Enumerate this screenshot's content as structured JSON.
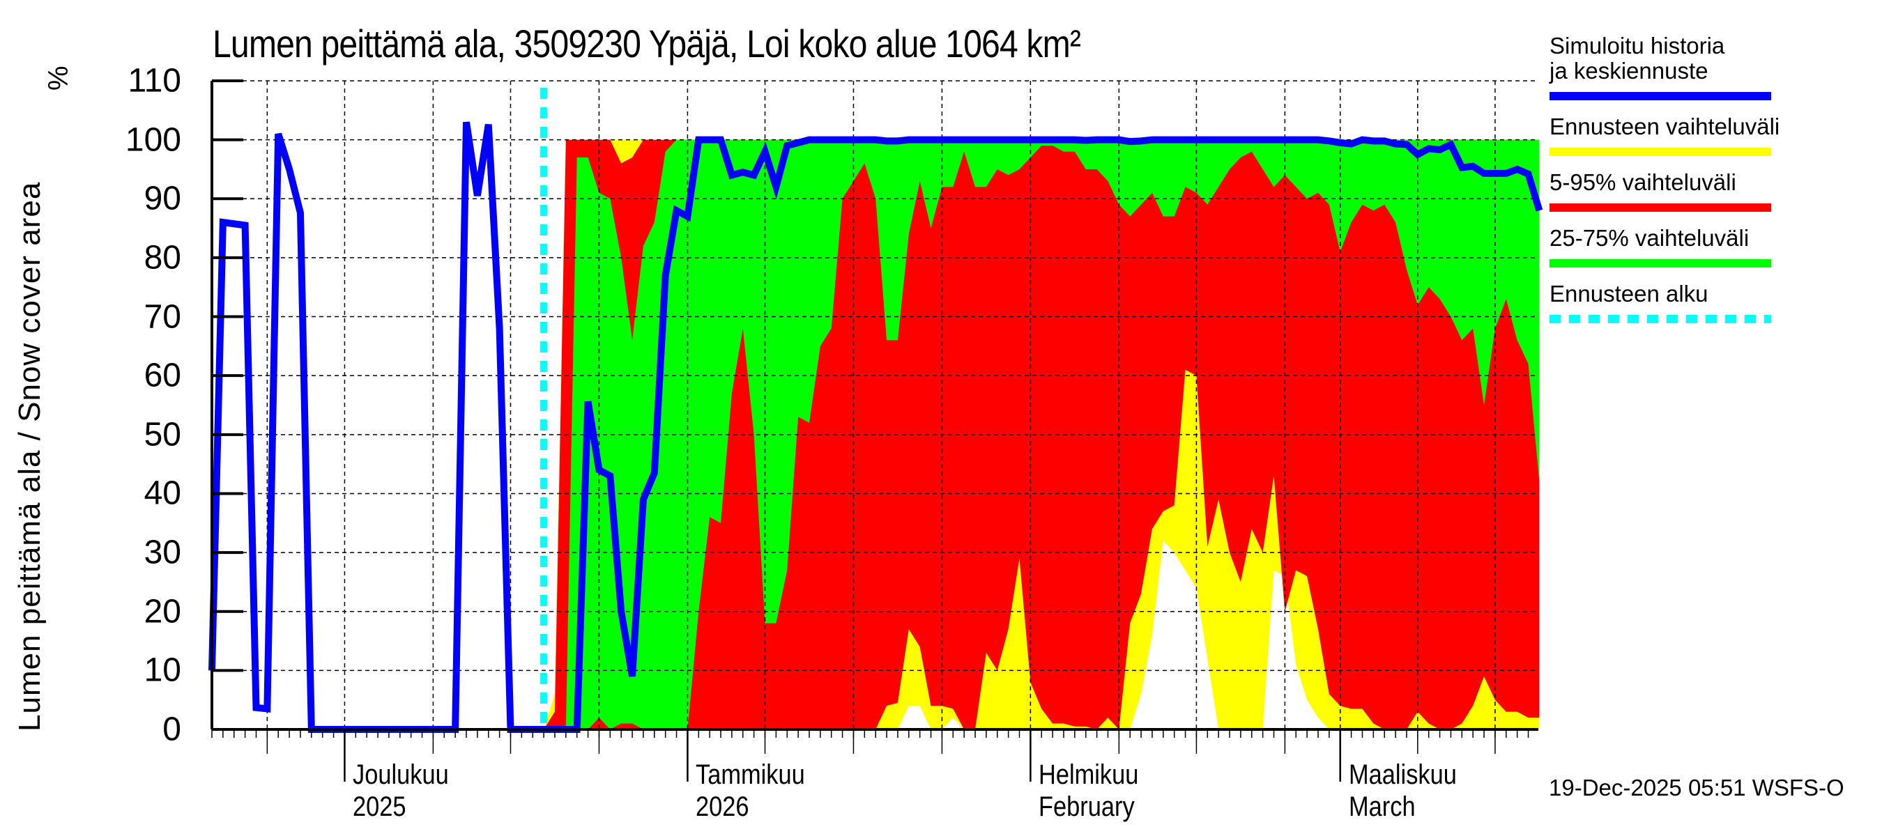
{
  "chart_data": {
    "type": "area",
    "title": "Lumen peittämä ala, 3509230 Ypäjä, Loi koko alue 1064 km²",
    "ylabel": "Lumen peittämä ala / Snow cover area",
    "yunit": "%",
    "xlabel": "",
    "ylim": [
      0,
      110
    ],
    "yticks": [
      0,
      10,
      20,
      30,
      40,
      50,
      60,
      70,
      80,
      90,
      100,
      110
    ],
    "grid": true,
    "legend_position": "right",
    "x_start_date": "2025-11-19",
    "x_end_date": "2026-03-19",
    "forecast_start_date": "2025-12-19",
    "month_labels": [
      {
        "line1": "Joulukuu",
        "line2": "2025",
        "date": "2025-12-01",
        "day": 12
      },
      {
        "line1": "Tammikuu",
        "line2": "2026",
        "date": "2026-01-01",
        "day": 43
      },
      {
        "line1": "Helmikuu",
        "line2": "February",
        "date": "2026-02-01",
        "day": 74
      },
      {
        "line1": "Maaliskuu",
        "line2": "March",
        "date": "2026-03-01",
        "day": 102
      }
    ],
    "history": {
      "name": "Simuloitu historia ja keskiennuste",
      "days": [
        0,
        1,
        3,
        4,
        5,
        6,
        7,
        8,
        9,
        22,
        23,
        24,
        25,
        26,
        27,
        30
      ],
      "values": [
        10,
        86,
        85.5,
        3.7,
        3.5,
        101,
        95,
        87.6,
        0,
        0,
        103,
        90.5,
        102.6,
        68,
        0,
        0
      ]
    },
    "forecast": {
      "start_day": 30,
      "days_offset": [
        0,
        1,
        2,
        3,
        4,
        5,
        6,
        7,
        8,
        9,
        10,
        11,
        12,
        13,
        14,
        15,
        16,
        17,
        18,
        19,
        20,
        21,
        22,
        23,
        24,
        25,
        26,
        27,
        28,
        29,
        30,
        31,
        32,
        33,
        34,
        35,
        36,
        37,
        38,
        39,
        40,
        41,
        42,
        43,
        44,
        45,
        46,
        47,
        48,
        49,
        50,
        51,
        52,
        53,
        54,
        55,
        56,
        57,
        58,
        59,
        60,
        61,
        62,
        63,
        64,
        65,
        66,
        67,
        68,
        69,
        70,
        71,
        72,
        73,
        74,
        75,
        76,
        77,
        78,
        79,
        80,
        81,
        82,
        83,
        84,
        85,
        86,
        87,
        88,
        89,
        90
      ],
      "mean": [
        0,
        0,
        0,
        0,
        55.6,
        44,
        43,
        20,
        9,
        39,
        43.5,
        77,
        88,
        87,
        100,
        100,
        100,
        94,
        94.5,
        94,
        98,
        92,
        99,
        99.5,
        100,
        100,
        100,
        100,
        100,
        100,
        100,
        99.8,
        99.8,
        100,
        100,
        100,
        100,
        100,
        100,
        100,
        100,
        100,
        100,
        100,
        100,
        100,
        100,
        100,
        100,
        99.9,
        100,
        100,
        100,
        99.7,
        99.8,
        100,
        100,
        100,
        100,
        100,
        100,
        100,
        100,
        100,
        100,
        100,
        100,
        100,
        100,
        100,
        100,
        99.8,
        99.5,
        99.3,
        100,
        99.8,
        99.8,
        99.3,
        99.2,
        97.5,
        98.5,
        98.3,
        99.2,
        95.3,
        95.5,
        94.3,
        94.3,
        94.3,
        95,
        94.2,
        88
      ],
      "max": [
        0,
        6,
        100,
        100,
        100,
        100,
        100,
        100,
        100,
        100,
        100,
        100,
        100,
        100,
        100,
        100,
        100,
        100,
        100,
        100,
        100,
        100,
        100,
        100,
        100,
        100,
        100,
        100,
        100,
        100,
        100,
        100,
        100,
        100,
        100,
        100,
        100,
        100,
        100,
        100,
        100,
        100,
        100,
        100,
        100,
        100,
        100,
        100,
        100,
        100,
        100,
        100,
        100,
        100,
        100,
        100,
        100,
        100,
        100,
        100,
        100,
        100,
        100,
        100,
        100,
        100,
        100,
        100,
        100,
        100,
        100,
        100,
        100,
        100,
        100,
        100,
        100,
        100,
        100,
        100,
        100,
        100,
        100,
        100,
        100,
        100,
        100,
        100,
        100,
        100,
        100
      ],
      "p95": [
        0,
        3,
        100,
        100,
        100,
        100,
        100,
        96,
        97,
        100,
        100,
        100,
        100,
        100,
        100,
        100,
        100,
        100,
        100,
        100,
        100,
        100,
        100,
        100,
        100,
        100,
        100,
        100,
        100,
        100,
        100,
        100,
        100,
        100,
        100,
        100,
        100,
        100,
        100,
        100,
        100,
        100,
        100,
        100,
        100,
        100,
        100,
        100,
        100,
        100,
        100,
        100,
        100,
        100,
        100,
        100,
        100,
        100,
        100,
        100,
        100,
        100,
        100,
        100,
        100,
        100,
        100,
        100,
        100,
        100,
        100,
        100,
        100,
        100,
        100,
        100,
        100,
        100,
        100,
        100,
        100,
        100,
        100,
        100,
        100,
        100,
        100,
        100,
        100,
        100,
        100
      ],
      "p75": [
        0,
        0,
        0,
        97,
        97,
        91,
        90,
        80,
        66,
        82,
        86,
        98,
        100,
        100,
        100,
        100,
        100,
        100,
        100,
        100,
        100,
        100,
        100,
        100,
        100,
        100,
        100,
        100,
        100,
        100,
        100,
        100,
        100,
        100,
        100,
        100,
        100,
        100,
        100,
        100,
        100,
        100,
        100,
        100,
        100,
        100,
        100,
        100,
        100,
        100,
        100,
        100,
        100,
        100,
        100,
        100,
        100,
        100,
        100,
        100,
        100,
        100,
        100,
        100,
        100,
        100,
        100,
        100,
        100,
        100,
        100,
        100,
        100,
        100,
        100,
        100,
        100,
        100,
        100,
        100,
        100,
        100,
        100,
        100,
        100,
        100,
        100,
        100,
        100,
        100,
        100
      ],
      "p25": [
        0,
        0,
        0,
        0,
        0,
        2,
        0,
        1,
        1,
        0,
        0,
        0,
        0,
        0,
        20,
        36,
        35,
        57,
        68,
        50,
        18,
        18,
        27,
        53,
        52,
        65,
        68,
        90,
        93,
        96,
        90,
        66,
        66,
        84,
        93,
        85,
        92,
        92,
        98,
        92,
        92,
        95,
        94,
        95,
        97,
        99,
        99,
        98,
        98,
        95,
        95,
        93,
        89,
        87,
        89,
        91,
        87,
        87,
        92,
        91,
        89,
        92,
        95,
        97,
        98,
        95,
        92,
        94,
        92,
        90,
        91,
        89,
        81,
        86,
        89,
        88,
        89,
        86,
        78,
        72,
        75,
        73,
        70,
        66,
        68,
        55,
        68,
        73,
        66,
        62,
        42
      ],
      "p5": [
        0,
        0,
        0,
        0,
        0,
        0,
        0,
        0,
        0,
        0,
        0,
        0,
        0,
        0,
        0,
        0,
        0,
        0,
        0,
        0,
        0,
        0,
        0,
        0,
        0,
        0,
        0,
        0,
        0,
        0,
        0,
        4,
        4.5,
        17,
        14,
        4,
        4,
        3.5,
        0,
        0,
        13,
        10,
        17,
        29,
        8,
        3.5,
        1,
        1,
        0.5,
        0.5,
        0,
        2,
        0,
        18,
        23,
        34,
        37,
        38,
        61,
        60,
        31,
        39,
        30,
        25,
        34,
        30,
        43,
        20,
        27,
        26,
        17,
        6,
        4,
        3.5,
        3.5,
        1,
        0,
        0,
        0,
        3,
        1,
        0,
        0,
        1,
        4,
        9,
        5,
        3,
        3,
        2,
        2
      ],
      "min": [
        0,
        0,
        0,
        0,
        0,
        0,
        0,
        0,
        0,
        0,
        0,
        0,
        0,
        0,
        0,
        0,
        0,
        0,
        0,
        0,
        0,
        0,
        0,
        0,
        0,
        0,
        0,
        0,
        0,
        0,
        0,
        0,
        0,
        4,
        4,
        0,
        0,
        2,
        0,
        0,
        0,
        0,
        0,
        0,
        0,
        0,
        0,
        0,
        0,
        0,
        0,
        0,
        0,
        0,
        6,
        16,
        32,
        30,
        27,
        24,
        12,
        0,
        0,
        0,
        0,
        0,
        27,
        26,
        11,
        5,
        2,
        0,
        0,
        0,
        0,
        0,
        0,
        0,
        0,
        0,
        0,
        0,
        0,
        0,
        0,
        0,
        0,
        0,
        0,
        0,
        0
      ]
    },
    "series_legend": [
      {
        "label": "Simuloitu historia ja keskiennuste",
        "color": "#0000ff",
        "style": "line"
      },
      {
        "label": "Ennusteen vaihteluväli",
        "color": "#ffff00",
        "style": "band"
      },
      {
        "label": "5-95% vaihteluväli",
        "color": "#ff0000",
        "style": "band"
      },
      {
        "label": "25-75% vaihteluväli",
        "color": "#00ff00",
        "style": "band"
      },
      {
        "label": "Ennusteen alku",
        "color": "#00ffff",
        "style": "dashed"
      }
    ]
  },
  "header": {
    "title": "Lumen peittämä ala, 3509230 Ypäjä, Loi koko alue 1064 km²"
  },
  "axis": {
    "ylabel": "Lumen peittämä ala / Snow cover area",
    "yunit": "%",
    "yticks": [
      "0",
      "10",
      "20",
      "30",
      "40",
      "50",
      "60",
      "70",
      "80",
      "90",
      "100",
      "110"
    ],
    "months": [
      {
        "line1": "Joulukuu",
        "line2": "2025"
      },
      {
        "line1": "Tammikuu",
        "line2": "2026"
      },
      {
        "line1": "Helmikuu",
        "line2": "February"
      },
      {
        "line1": "Maaliskuu",
        "line2": "March"
      }
    ]
  },
  "legend": {
    "items": [
      {
        "label": "Simuloitu historia ja keskiennuste",
        "color": "#0000ff"
      },
      {
        "label": "Ennusteen vaihteluväli",
        "color": "#ffff00"
      },
      {
        "label": "5-95% vaihteluväli",
        "color": "#ff0000"
      },
      {
        "label": "25-75% vaihteluväli",
        "color": "#00ff00"
      },
      {
        "label": "Ennusteen alku",
        "color": "#00ffff"
      }
    ]
  },
  "footer": {
    "timestamp": "19-Dec-2025 05:51 WSFS-O"
  },
  "colors": {
    "mean": "#0000ff",
    "range": "#ffff00",
    "p5_95": "#ff0000",
    "p25_75": "#00ff00",
    "forecast_start": "#00ffff",
    "grid": "#000000"
  }
}
